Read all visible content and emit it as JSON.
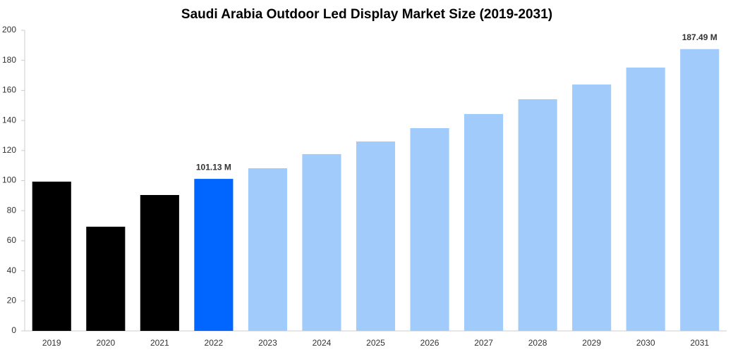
{
  "chart_data": {
    "type": "bar",
    "title": "Saudi Arabia Outdoor Led Display Market Size (2019-2031)",
    "categories": [
      "2019",
      "2020",
      "2021",
      "2022",
      "2023",
      "2024",
      "2025",
      "2026",
      "2027",
      "2028",
      "2029",
      "2030",
      "2031"
    ],
    "values": [
      99.3,
      69.3,
      90.4,
      101.13,
      108.2,
      117.6,
      126,
      134.9,
      144.3,
      154.1,
      163.9,
      175.2,
      187.49
    ],
    "value_labels": [
      null,
      null,
      null,
      "101.13 M",
      null,
      null,
      null,
      null,
      null,
      null,
      null,
      null,
      "187.49 M"
    ],
    "colors": [
      "#000000",
      "#000000",
      "#000000",
      "#0066ff",
      "#a0cbfb",
      "#a0cbfb",
      "#a0cbfb",
      "#a0cbfb",
      "#a0cbfb",
      "#a0cbfb",
      "#a0cbfb",
      "#a0cbfb",
      "#a0cbfb"
    ],
    "ylim": [
      0,
      200
    ],
    "yticks": [
      0,
      20,
      40,
      60,
      80,
      100,
      120,
      140,
      160,
      180,
      200
    ],
    "grid": false
  }
}
